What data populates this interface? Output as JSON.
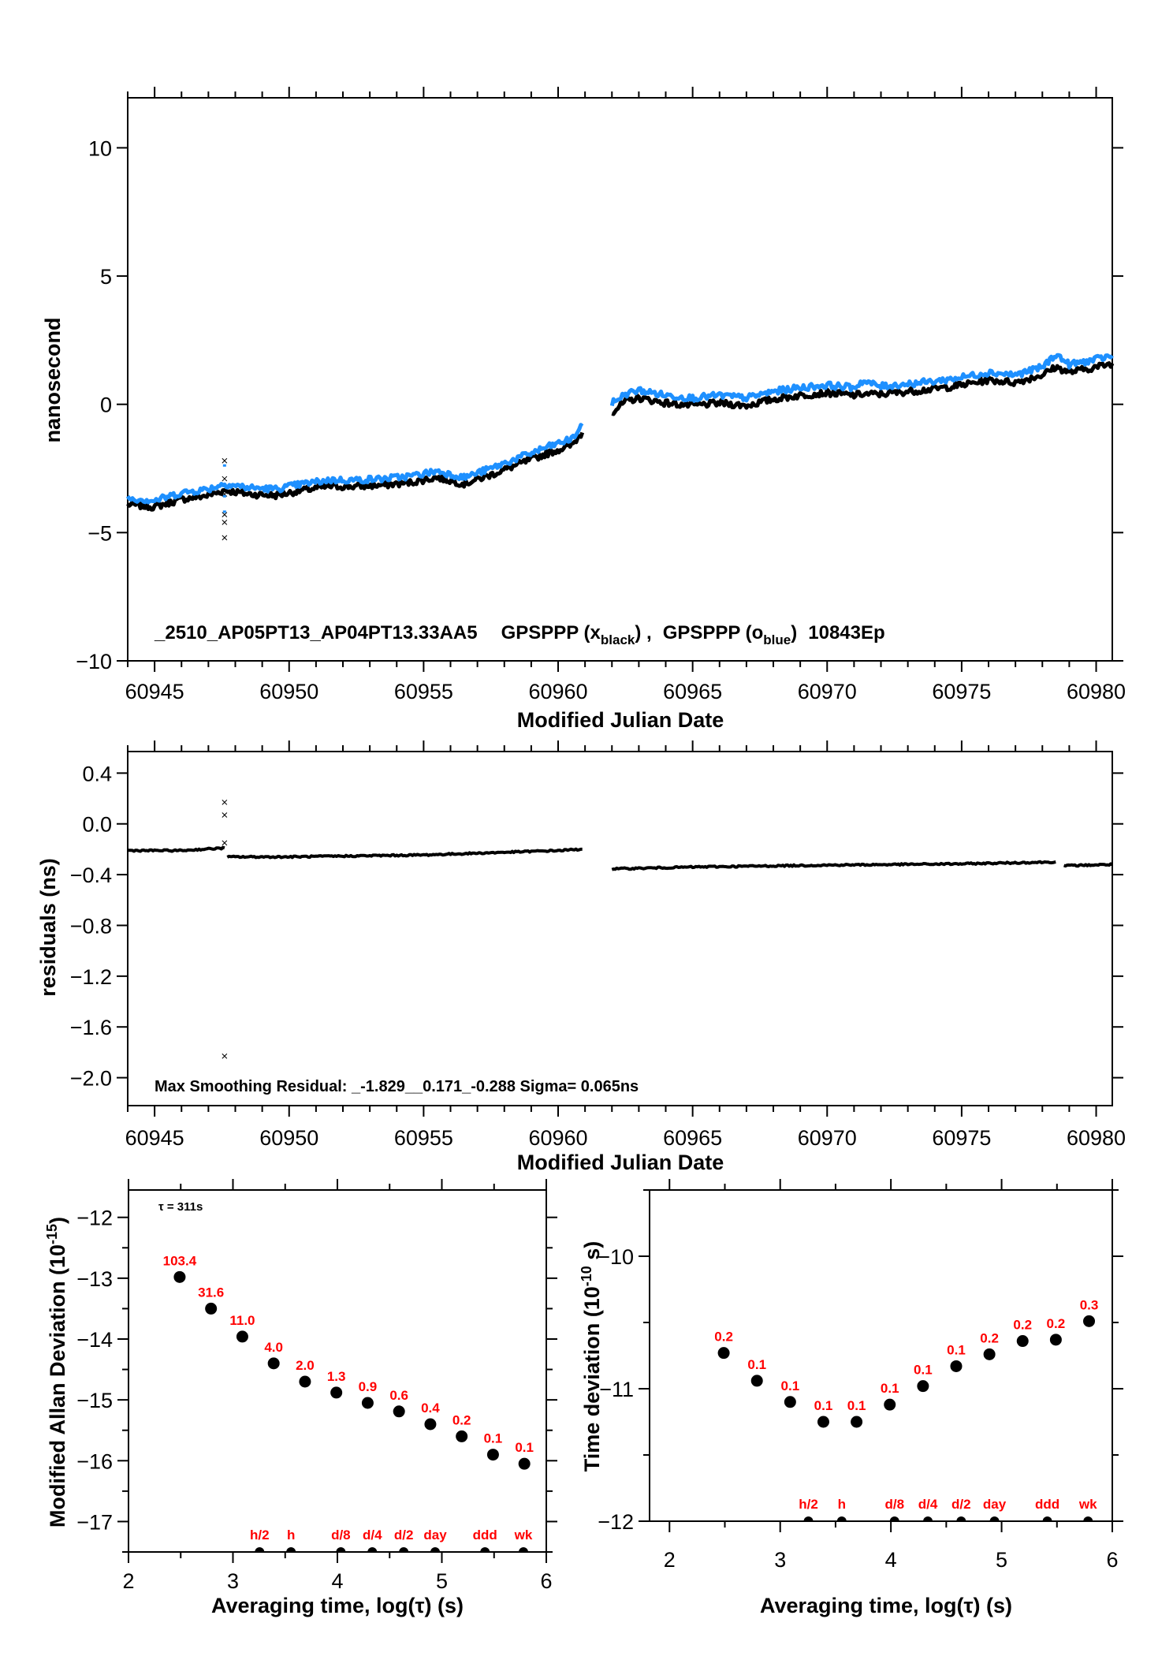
{
  "chart_data": [
    {
      "id": "phase",
      "type": "scatter",
      "title": "_2510_AP05PT13_AP04PT13.33AA5   GPSPPP (x_black) ,  GPSPPP (o_blue)  10843Ep",
      "annotation": {
        "main": "_2510_AP05PT13_AP04PT13.33AA5",
        "s1_prefix": "GPSPPP (x",
        "s1_sub": "black",
        "s1_suffix": ") ,",
        "s2_prefix": "GPSPPP (o",
        "s2_sub": "blue",
        "s2_suffix": ")",
        "tail": "10843Ep"
      },
      "xlabel": "Modified Julian Date",
      "ylabel": "nanosecond",
      "xlim": [
        60944,
        60980.6
      ],
      "ylim": [
        -10,
        11.95
      ],
      "xticks": [
        60945,
        60950,
        60955,
        60960,
        60965,
        60970,
        60975,
        60980
      ],
      "xtick_labels": [
        "60945",
        "60950",
        "60955",
        "60960",
        "60965",
        "60970",
        "60975",
        "60980"
      ],
      "yticks": [
        10,
        5,
        0,
        -5,
        -10
      ],
      "ytick_labels": [
        "10",
        "5",
        "0",
        "−5",
        "−10"
      ],
      "series": [
        {
          "name": "GPSPPP (x black)",
          "color": "#000000",
          "marker": "x",
          "segments": [
            {
              "x": [
                60944.0,
                60945.0,
                60946.0,
                60947.0,
                60947.6,
                60948.5,
                60949.5,
                60950.5,
                60951.5,
                60952.5,
                60953.5,
                60954.5,
                60955.5,
                60956.5,
                60957.5,
                60958.5,
                60959.5,
                60960.5,
                60960.9
              ],
              "y": [
                -3.9,
                -4.0,
                -3.7,
                -3.55,
                -3.35,
                -3.5,
                -3.55,
                -3.35,
                -3.2,
                -3.2,
                -3.15,
                -3.05,
                -2.85,
                -3.1,
                -2.75,
                -2.35,
                -1.95,
                -1.6,
                -1.1
              ]
            },
            {
              "x": [
                60962.0,
                60962.5,
                60963.0,
                60964.0,
                60965.0,
                60966.0,
                60967.0,
                60968.0,
                60969.0,
                60970.0,
                60971.0,
                60971.3,
                60972.0,
                60973.0,
                60974.0,
                60975.0,
                60976.0,
                60977.0,
                60978.0,
                60978.5,
                60979.0,
                60980.0,
                60980.6
              ],
              "y": [
                -0.3,
                0.1,
                0.25,
                0.05,
                -0.05,
                0.05,
                -0.05,
                0.2,
                0.35,
                0.45,
                0.35,
                0.4,
                0.4,
                0.5,
                0.6,
                0.75,
                0.95,
                0.85,
                1.15,
                1.45,
                1.25,
                1.45,
                1.6
              ]
            }
          ],
          "outliers": {
            "x": [
              60947.6,
              60947.6,
              60947.6,
              60947.6,
              60947.6,
              60947.6
            ],
            "y": [
              -2.2,
              -2.9,
              -3.5,
              -4.3,
              -4.6,
              -5.2
            ]
          }
        },
        {
          "name": "GPSPPP (o blue)",
          "color": "#1e90ff",
          "marker": "o",
          "segments": [
            {
              "x": [
                60944.0,
                60945.0,
                60946.0,
                60947.0,
                60947.6,
                60948.5,
                60949.5,
                60950.5,
                60951.5,
                60952.5,
                60953.5,
                60954.5,
                60955.5,
                60956.5,
                60957.5,
                60958.5,
                60959.5,
                60960.5,
                60960.9
              ],
              "y": [
                -3.65,
                -3.75,
                -3.45,
                -3.3,
                -3.1,
                -3.25,
                -3.3,
                -3.1,
                -2.95,
                -2.95,
                -2.9,
                -2.8,
                -2.6,
                -2.85,
                -2.5,
                -2.1,
                -1.7,
                -1.35,
                -0.85
              ]
            },
            {
              "x": [
                60962.0,
                60962.5,
                60963.0,
                60964.0,
                60965.0,
                60966.0,
                60967.0,
                60968.0,
                60969.0,
                60970.0,
                60971.0,
                60971.3,
                60972.0,
                60973.0,
                60974.0,
                60975.0,
                60976.0,
                60977.0,
                60978.0,
                60978.5,
                60979.0,
                60980.0,
                60980.6
              ],
              "y": [
                0.05,
                0.4,
                0.55,
                0.35,
                0.25,
                0.35,
                0.25,
                0.5,
                0.65,
                0.75,
                0.65,
                0.9,
                0.7,
                0.8,
                0.9,
                1.05,
                1.25,
                1.15,
                1.45,
                1.95,
                1.55,
                1.75,
                1.9
              ]
            }
          ],
          "outliers": {
            "x": [
              60947.6,
              60947.6,
              60947.6,
              60947.6
            ],
            "y": [
              -2.4,
              -3.2,
              -3.6,
              -4.2
            ]
          }
        }
      ]
    },
    {
      "id": "residuals",
      "type": "scatter",
      "xlabel": "Modified Julian Date",
      "ylabel": "residuals (ns)",
      "annotation": "Max Smoothing Residual: _-1.829__0.171_-0.288  Sigma= 0.065ns",
      "xlim": [
        60944,
        60980.6
      ],
      "ylim": [
        -2.22,
        0.57
      ],
      "xticks": [
        60945,
        60950,
        60955,
        60960,
        60965,
        60970,
        60975,
        60980
      ],
      "xtick_labels": [
        "60945",
        "60950",
        "60955",
        "60960",
        "60965",
        "60970",
        "60975",
        "60980"
      ],
      "yticks": [
        0.4,
        0.0,
        -0.4,
        -0.8,
        -1.2,
        -1.6,
        -2.0
      ],
      "ytick_labels": [
        "0.4",
        "0.0",
        "−0.4",
        "−0.8",
        "−1.2",
        "−1.6",
        "−2.0"
      ],
      "series": [
        {
          "name": "residuals",
          "color": "#000000",
          "marker": "x",
          "segments": [
            {
              "x": [
                60944.0,
                60946.0,
                60947.6
              ],
              "y": [
                -0.21,
                -0.21,
                -0.19
              ]
            },
            {
              "x": [
                60947.7,
                60950.0,
                60955.0,
                60960.0,
                60960.9
              ],
              "y": [
                -0.26,
                -0.26,
                -0.245,
                -0.21,
                -0.2
              ]
            },
            {
              "x": [
                60962.0,
                60965.0,
                60970.0,
                60975.0,
                60978.5
              ],
              "y": [
                -0.355,
                -0.34,
                -0.325,
                -0.315,
                -0.3
              ]
            },
            {
              "x": [
                60978.8,
                60980.6
              ],
              "y": [
                -0.33,
                -0.32
              ]
            }
          ],
          "outliers": {
            "x": [
              60947.6,
              60947.6,
              60947.6,
              60947.6
            ],
            "y": [
              0.17,
              0.07,
              -0.15,
              -1.83
            ]
          }
        }
      ]
    },
    {
      "id": "mdev",
      "type": "scatter",
      "xlabel": "Averaging time, log(τ) (s)",
      "ylabel_main": "Modified Allan Deviation (10",
      "ylabel_sup": "-15",
      "ylabel_end": ")",
      "annotation": "τ = 311s",
      "xlim": [
        2,
        6
      ],
      "ylim": [
        -17.5,
        -11.55
      ],
      "xticks": [
        2,
        3,
        4,
        5,
        6
      ],
      "xtick_labels": [
        "2",
        "3",
        "4",
        "5",
        "6"
      ],
      "yticks": [
        -12,
        -13,
        -14,
        -15,
        -16,
        -17
      ],
      "ytick_labels": [
        "−12",
        "−13",
        "−14",
        "−15",
        "−16",
        "−17"
      ],
      "x": [
        2.49,
        2.79,
        3.09,
        3.39,
        3.69,
        3.99,
        4.29,
        4.59,
        4.89,
        5.19,
        5.49,
        5.79
      ],
      "y": [
        -12.98,
        -13.5,
        -13.96,
        -14.4,
        -14.7,
        -14.88,
        -15.05,
        -15.19,
        -15.4,
        -15.6,
        -15.9,
        -16.05
      ],
      "point_labels": [
        "103.4",
        "31.6",
        "11.0",
        "4.0",
        "2.0",
        "1.3",
        "0.9",
        "0.6",
        "0.4",
        "0.2",
        "0.1",
        "0.1"
      ],
      "time_markers": {
        "x": [
          3.255,
          3.556,
          4.033,
          4.334,
          4.635,
          4.936,
          5.413,
          5.781
        ],
        "labels": [
          "h/2",
          "h",
          "d/8",
          "d/4",
          "d/2",
          "day",
          "ddd",
          "wk"
        ]
      }
    },
    {
      "id": "tdev",
      "type": "scatter",
      "xlabel": "Averaging time, log(τ) (s)",
      "ylabel_main": "Time deviation (10",
      "ylabel_sup": "-10",
      "ylabel_end": " s)",
      "xlim": [
        1.82,
        6.0
      ],
      "ylim": [
        -12,
        -9.5
      ],
      "xticks": [
        2,
        3,
        4,
        5,
        6
      ],
      "xtick_labels": [
        "2",
        "3",
        "4",
        "5",
        "6"
      ],
      "yticks": [
        -10,
        -11,
        -12
      ],
      "ytick_labels": [
        "−10",
        "−11",
        "−12"
      ],
      "x": [
        2.49,
        2.79,
        3.09,
        3.39,
        3.69,
        3.99,
        4.29,
        4.59,
        4.89,
        5.19,
        5.49,
        5.79
      ],
      "y": [
        -10.73,
        -10.94,
        -11.1,
        -11.25,
        -11.25,
        -11.12,
        -10.98,
        -10.83,
        -10.74,
        -10.64,
        -10.63,
        -10.49
      ],
      "point_labels": [
        "0.2",
        "0.1",
        "0.1",
        "0.1",
        "0.1",
        "0.1",
        "0.1",
        "0.1",
        "0.2",
        "0.2",
        "0.2",
        "0.3"
      ],
      "time_markers": {
        "x": [
          3.255,
          3.556,
          4.033,
          4.334,
          4.635,
          4.936,
          5.413,
          5.781
        ],
        "labels": [
          "h/2",
          "h",
          "d/8",
          "d/4",
          "d/2",
          "day",
          "ddd",
          "wk"
        ]
      }
    }
  ],
  "colors": {
    "series_black": "#000000",
    "series_blue": "#1e90ff",
    "label_red": "#ff0000"
  }
}
